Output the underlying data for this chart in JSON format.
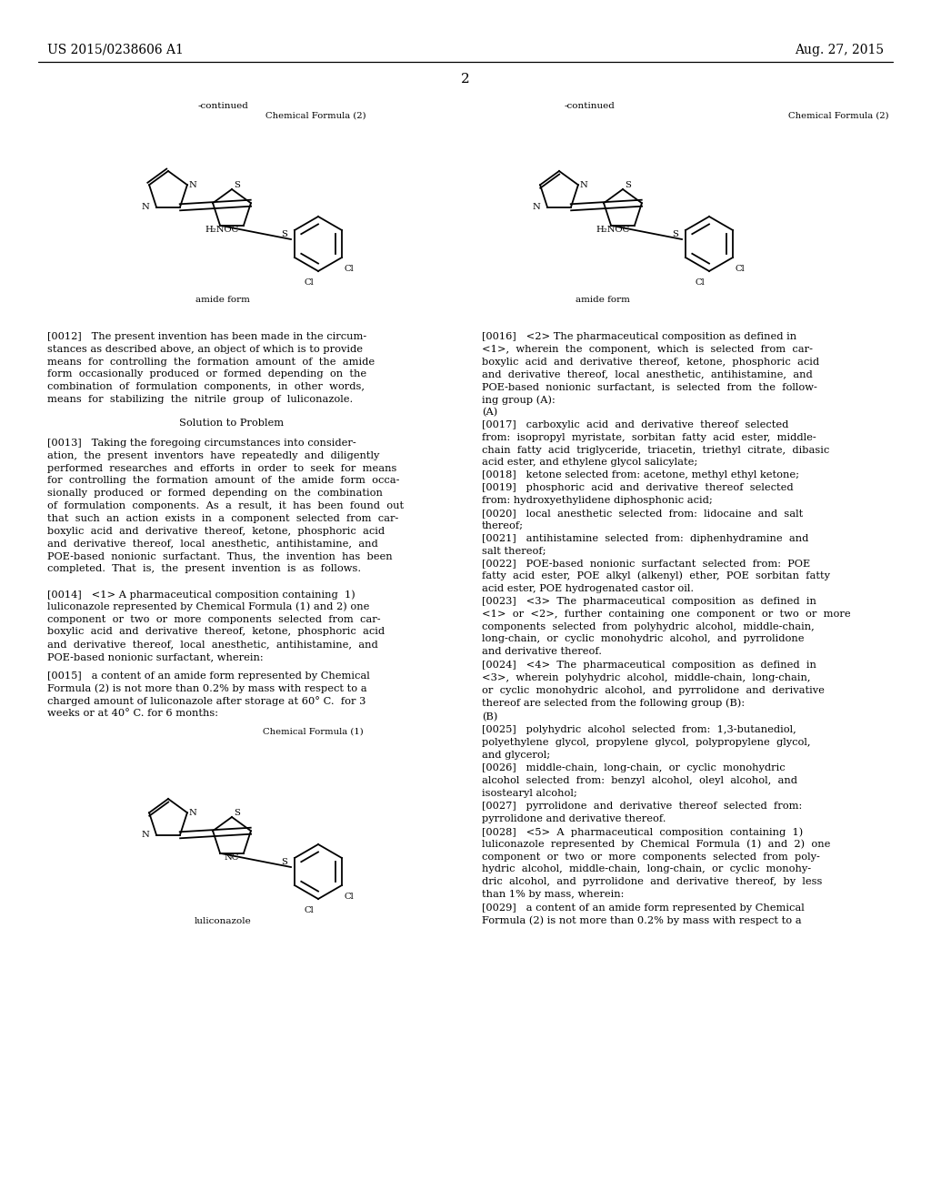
{
  "background_color": "#ffffff",
  "page_number": "2",
  "header_left": "US 2015/0238606 A1",
  "header_right": "Aug. 27, 2015",
  "body_fs": 8.2,
  "label_fs": 7.5,
  "header_fs": 10.0,
  "small_fs": 7.2
}
